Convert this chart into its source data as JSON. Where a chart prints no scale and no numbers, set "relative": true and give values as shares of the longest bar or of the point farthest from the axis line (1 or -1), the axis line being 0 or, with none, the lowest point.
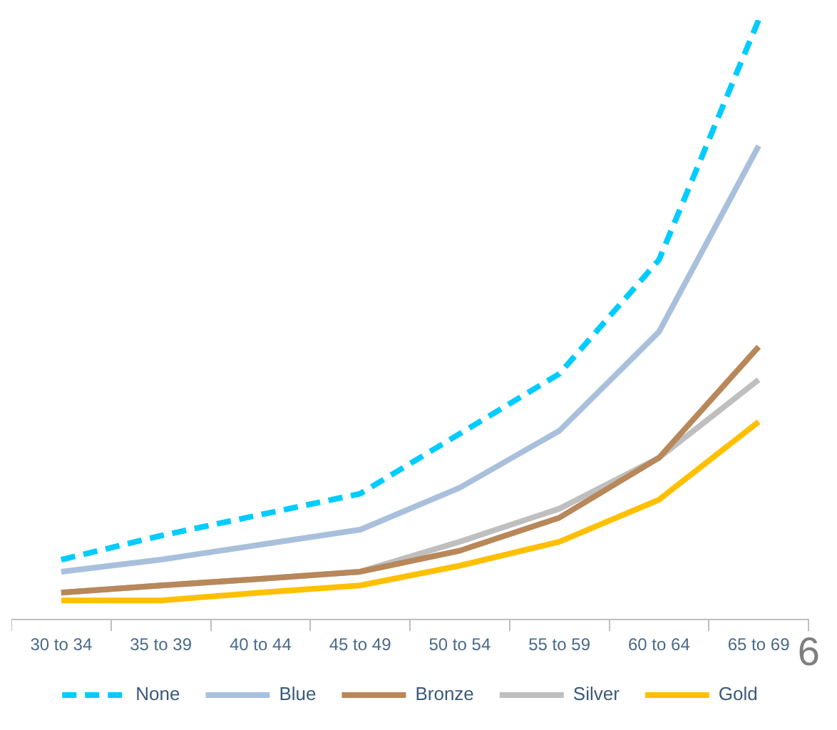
{
  "chart_data": {
    "type": "line",
    "relative": true,
    "categories": [
      "30 to 34",
      "35 to 39",
      "40 to 44",
      "45 to 49",
      "50 to 54",
      "55 to 59",
      "60 to 64",
      "65 to 69"
    ],
    "series": [
      {
        "name": "None",
        "color": "#00ccff",
        "line_style": "dashed",
        "values": [
          0.1,
          0.14,
          0.175,
          0.21,
          0.31,
          0.41,
          0.6,
          1
        ]
      },
      {
        "name": "Blue",
        "color": "#a9c0dc",
        "values": [
          0.08,
          0.1,
          0.125,
          0.15,
          0.22,
          0.315,
          0.48,
          0.79
        ]
      },
      {
        "name": "Bronze",
        "color": "#b8875a",
        "values": [
          0.045,
          0.057,
          0.068,
          0.08,
          0.115,
          0.17,
          0.27,
          0.455
        ]
      },
      {
        "name": "Silver",
        "color": "#bfbfbf",
        "values": [
          0.045,
          0.057,
          0.068,
          0.08,
          0.13,
          0.185,
          0.27,
          0.4
        ]
      },
      {
        "name": "Gold",
        "color": "#ffc000",
        "values": [
          0.032,
          0.032,
          0.045,
          0.057,
          0.09,
          0.13,
          0.2,
          0.33
        ]
      }
    ],
    "legend": "bottom",
    "marker": "none",
    "grid": false,
    "line_style": "solid",
    "annotations": [
      "6"
    ]
  }
}
